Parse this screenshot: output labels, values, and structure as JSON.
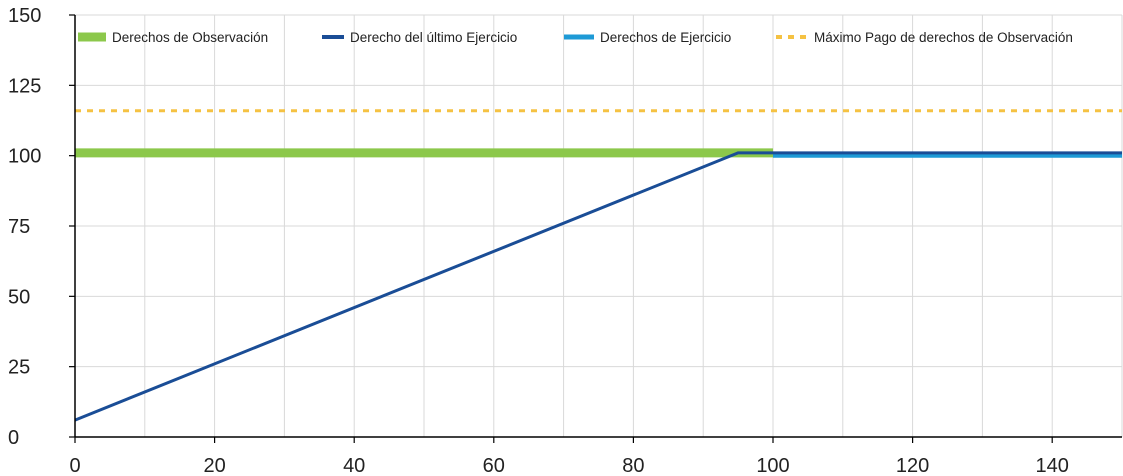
{
  "chart_data": {
    "type": "line",
    "title": "",
    "xlabel": "",
    "ylabel": "",
    "xlim": [
      0,
      150
    ],
    "ylim": [
      0,
      150
    ],
    "x_ticks": [
      0,
      20,
      40,
      60,
      80,
      100,
      120,
      140
    ],
    "y_ticks": [
      0,
      25,
      50,
      75,
      100,
      125,
      150
    ],
    "x_gridlines_every": 10,
    "y_gridlines_every": 25,
    "grid": true,
    "legend_position": "top",
    "series": [
      {
        "name": "Derechos de Observación",
        "color": "#8cc84b",
        "style": "solid-thick",
        "x": [
          0,
          100
        ],
        "y": [
          101,
          101
        ]
      },
      {
        "name": "Derecho del último Ejercicio",
        "color": "#1a4d96",
        "style": "solid",
        "x": [
          0,
          95,
          150
        ],
        "y": [
          6,
          101,
          101
        ]
      },
      {
        "name": "Derechos de Ejercicio",
        "color": "#1e9ad6",
        "style": "solid-medium",
        "x": [
          100,
          150
        ],
        "y": [
          100,
          100
        ]
      },
      {
        "name": "Máximo Pago de derechos de Observación",
        "color": "#f5c243",
        "style": "dashed",
        "x": [
          0,
          150
        ],
        "y": [
          116,
          116
        ]
      }
    ]
  }
}
